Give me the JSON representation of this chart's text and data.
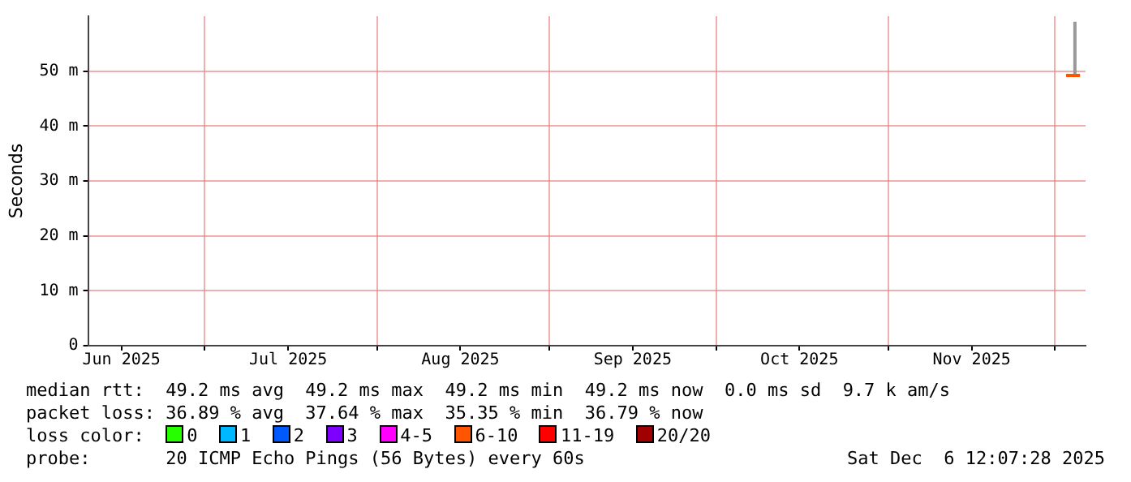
{
  "chart_data": {
    "type": "line",
    "ylabel": "Seconds",
    "x": [
      "2025-12-03",
      "2025-12-05T12:00"
    ],
    "series": [
      {
        "color": "#ff5500",
        "values": [
          49.2,
          49.2
        ]
      },
      {
        "color": "#999999",
        "x": [
          "2025-12-04T14:00",
          "2025-12-04T14:00"
        ],
        "values": [
          49.2,
          59
        ]
      }
    ],
    "xlim": [
      "2025-06-10",
      "2025-12-06T12:00"
    ],
    "xticks": [
      {
        "value": "2025-06-16",
        "label": "Jun 2025"
      },
      {
        "value": "2025-07-16",
        "label": "Jul 2025"
      },
      {
        "value": "2025-08-16",
        "label": "Aug 2025"
      },
      {
        "value": "2025-09-16",
        "label": "Sep 2025"
      },
      {
        "value": "2025-10-16",
        "label": "Oct 2025"
      },
      {
        "value": "2025-11-16",
        "label": "Nov 2025"
      },
      {
        "value": "2025-07-01",
        "label": null
      },
      {
        "value": "2025-08-01",
        "label": null
      },
      {
        "value": "2025-09-01",
        "label": null
      },
      {
        "value": "2025-10-01",
        "label": null
      },
      {
        "value": "2025-11-01",
        "label": null
      },
      {
        "value": "2025-12-01",
        "label": null
      }
    ],
    "ylim": [
      0,
      60
    ],
    "yticks": [
      0,
      {
        "value": 10,
        "label": "10 m"
      },
      {
        "value": 20,
        "label": "20 m"
      },
      {
        "value": 30,
        "label": "30 m"
      },
      {
        "value": 40,
        "label": "40 m"
      },
      {
        "value": 50,
        "label": "50 m"
      }
    ],
    "grid": true,
    "legend": false,
    "marker": "none",
    "annotations": [
      "median rtt:  49.2 ms avg  49.2 ms max  49.2 ms min  49.2 ms now  0.0 ms sd  9.7 k am/s",
      "packet loss: 36.89 % avg  37.64 % max  35.35 % min  36.79 % now",
      "loss color:  0  1  2  3  4-5  6-10  11-19  20/20",
      "probe:       20 ICMP Echo Pings (56 Bytes) every 60s",
      "Sat Dec  6 12:07:28 2025"
    ]
  }
}
